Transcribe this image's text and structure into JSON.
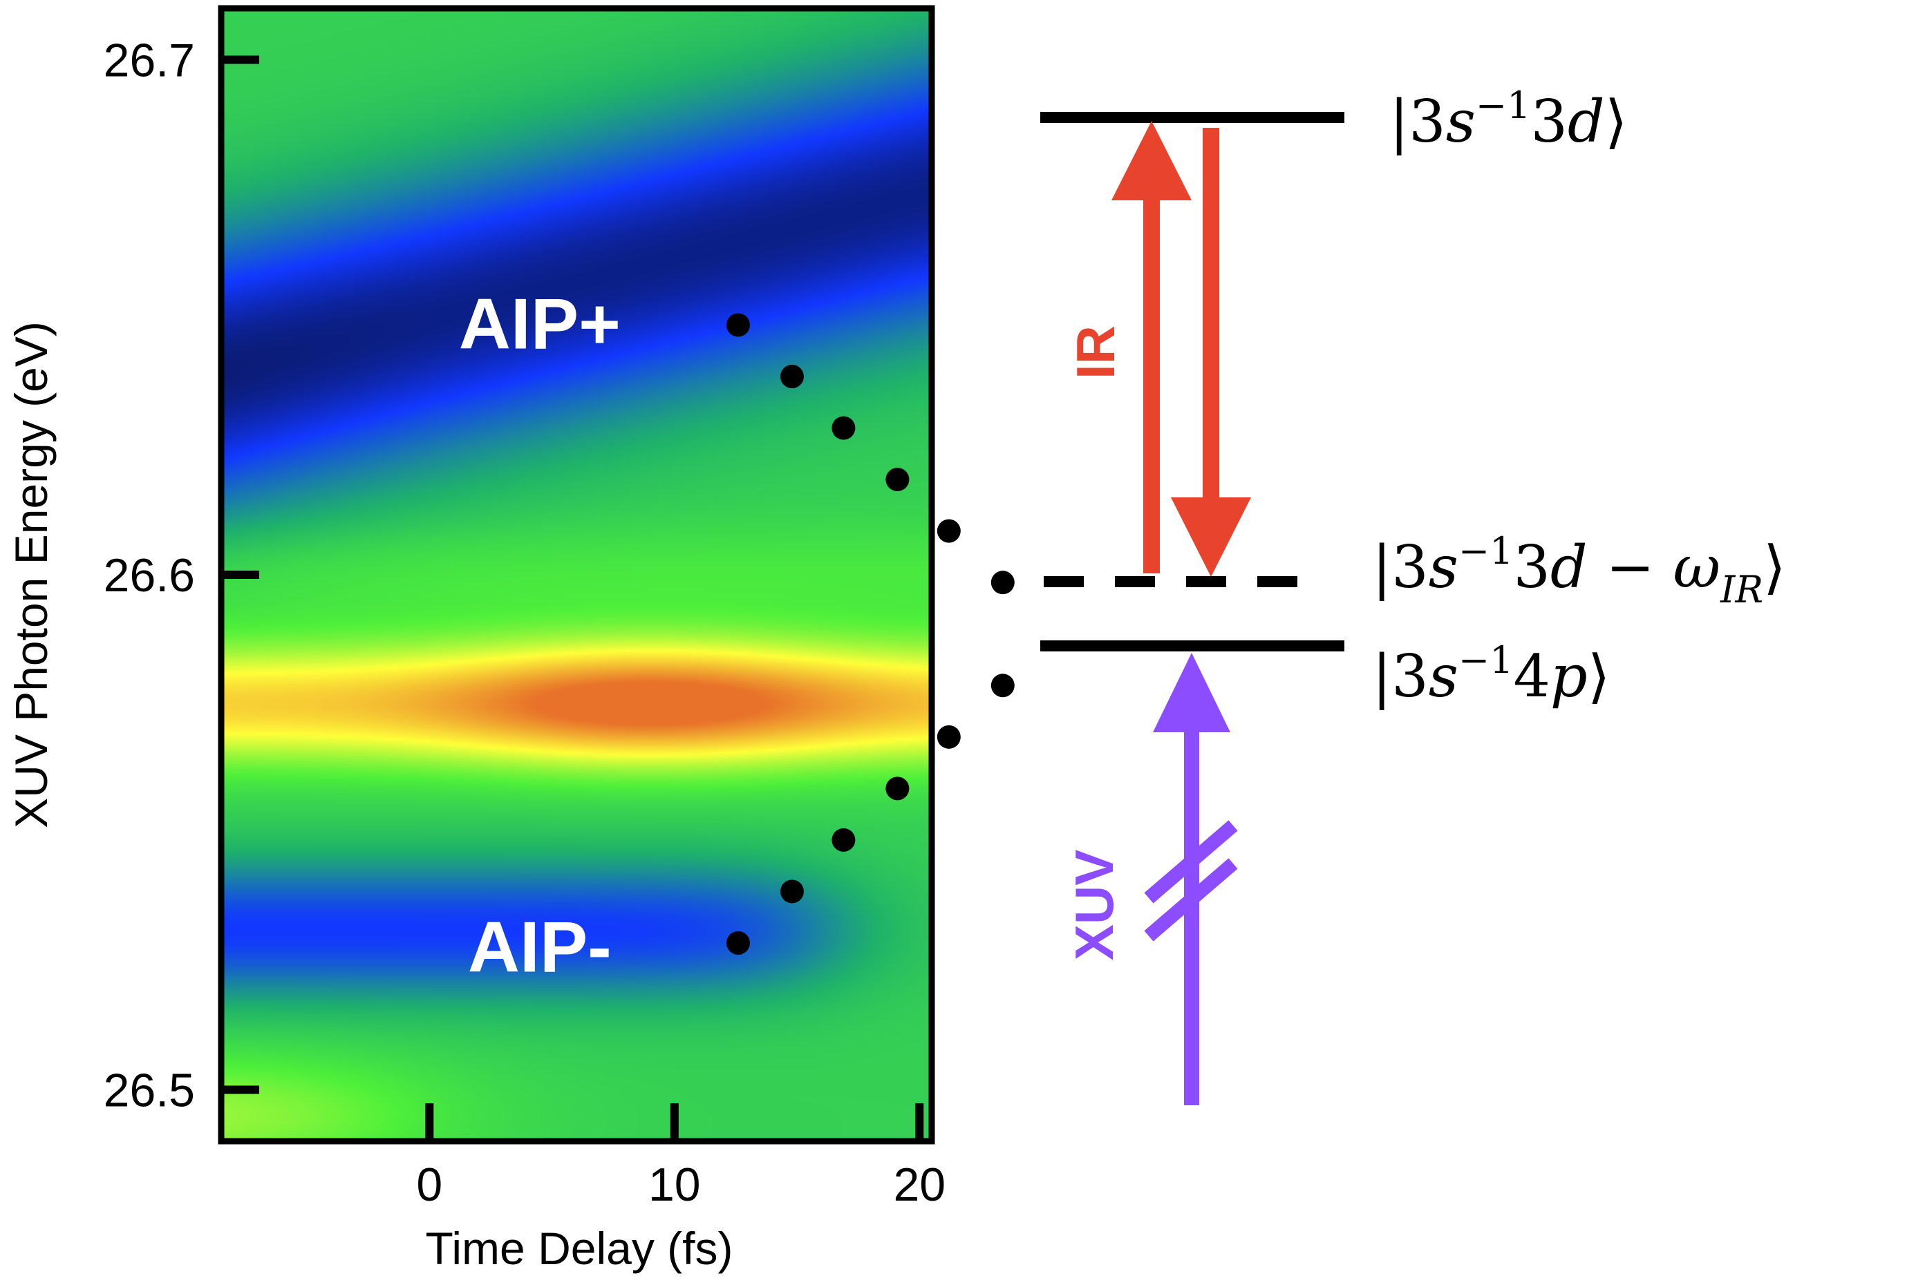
{
  "chart_data": {
    "type": "heatmap",
    "xlabel": "Time Delay (fs)",
    "ylabel": "XUV Photon Energy (eV)",
    "xlim": [
      -8.5,
      20.5
    ],
    "ylim": [
      26.49,
      26.71
    ],
    "xticks": [
      0,
      10,
      20
    ],
    "xtick_labels": [
      "0",
      "10",
      "20"
    ],
    "yticks": [
      26.5,
      26.6,
      26.7
    ],
    "ytick_labels": [
      "26.5",
      "26.6",
      "26.7"
    ],
    "colormap": [
      "#0a1a6e",
      "#1238ff",
      "#1fb36a",
      "#4ef03a",
      "#ffff3a",
      "#e8722a"
    ],
    "annotations": [
      {
        "text": "AIP+",
        "x": 4.5,
        "y": 26.649
      },
      {
        "text": "AIP-",
        "x": 4.5,
        "y": 26.528
      }
    ],
    "dots": [
      {
        "x": 12.6,
        "y": 26.6485
      },
      {
        "x": 14.8,
        "y": 26.6385
      },
      {
        "x": 16.9,
        "y": 26.6285
      },
      {
        "x": 19.1,
        "y": 26.6185
      },
      {
        "x": 21.2,
        "y": 26.6085
      },
      {
        "x": 23.4,
        "y": 26.5985
      },
      {
        "x": 23.4,
        "y": 26.5785
      },
      {
        "x": 21.2,
        "y": 26.5685
      },
      {
        "x": 19.1,
        "y": 26.5585
      },
      {
        "x": 16.9,
        "y": 26.5485
      },
      {
        "x": 14.8,
        "y": 26.5385
      },
      {
        "x": 12.6,
        "y": 26.5285
      }
    ]
  },
  "level_diagram": {
    "states": [
      {
        "key": "upper",
        "prefix": "|3",
        "italic1": "s",
        "sup": "−1",
        "mid": "3",
        "italic2": "d",
        "suffix": "⟩",
        "sub": ""
      },
      {
        "key": "virtual",
        "prefix": "|3",
        "italic1": "s",
        "sup": "−1",
        "mid": "3",
        "italic2": "d",
        "suffix": "⟩",
        "minus": " − ",
        "omega": "ω",
        "sub": "IR"
      },
      {
        "key": "lower",
        "prefix": "|3",
        "italic1": "s",
        "sup": "−1",
        "mid": "4",
        "italic2": "p",
        "suffix": "⟩",
        "sub": ""
      }
    ],
    "ir_label": "IR",
    "xuv_label": "XUV",
    "colors": {
      "ir": "#e8432c",
      "xuv": "#8b4dff",
      "level": "#000000"
    }
  }
}
